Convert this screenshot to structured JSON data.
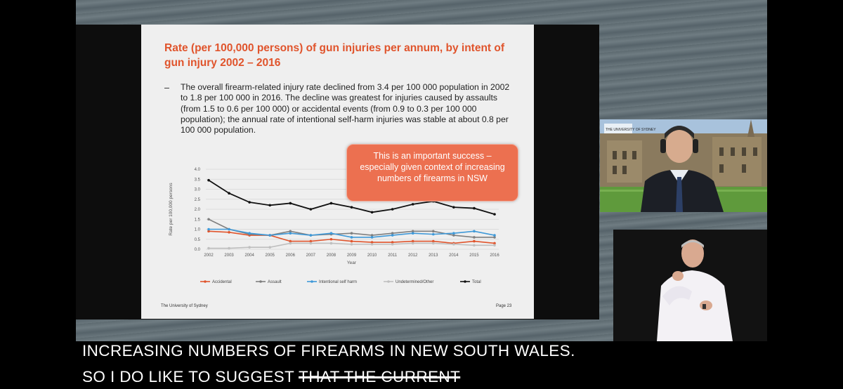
{
  "slide": {
    "title": "Rate (per 100,000 persons) of gun injuries per annum, by intent of gun injury 2002 – 2016",
    "bullet_dash": "–",
    "bullet": "The overall firearm-related injury rate declined from 3.4 per 100 000 population in 2002 to 1.8 per 100 000 in 2016. The decline was greatest for injuries caused by assaults (from 1.5 to 0.6 per 100 000) or accidental events (from 0.9 to 0.3 per 100 000 population); the annual rate of intentional self-harm injuries was stable at about 0.8 per 100 000 population.",
    "callout": "This is an important success – especially given context of increasing numbers of firearms in NSW",
    "footer_left": "The University of Sydney",
    "footer_right": "Page 23"
  },
  "chart_data": {
    "type": "line",
    "xlabel": "Year",
    "ylabel": "Rate per 100,000 persons",
    "ylim": [
      0,
      4
    ],
    "yticks": [
      "0.0",
      "0.5",
      "1.0",
      "1.5",
      "2.0",
      "2.5",
      "3.0",
      "3.5",
      "4.0"
    ],
    "x": [
      "2002",
      "2003",
      "2004",
      "2005",
      "2006",
      "2007",
      "2008",
      "2009",
      "2010",
      "2011",
      "2012",
      "2013",
      "2014",
      "2015",
      "2016"
    ],
    "grid": true,
    "legend_position": "bottom",
    "series": [
      {
        "name": "Accidental",
        "color": "#e0542c",
        "values": [
          0.9,
          0.85,
          0.7,
          0.7,
          0.4,
          0.4,
          0.5,
          0.4,
          0.35,
          0.35,
          0.4,
          0.4,
          0.3,
          0.4,
          0.3
        ]
      },
      {
        "name": "Assault",
        "color": "#7f7f7f",
        "values": [
          1.5,
          1.0,
          0.75,
          0.7,
          0.9,
          0.7,
          0.75,
          0.8,
          0.7,
          0.8,
          0.9,
          0.9,
          0.7,
          0.6,
          0.6
        ]
      },
      {
        "name": "Intentional self harm",
        "color": "#3f99d8",
        "values": [
          1.0,
          1.0,
          0.8,
          0.7,
          0.8,
          0.7,
          0.8,
          0.6,
          0.6,
          0.7,
          0.8,
          0.75,
          0.8,
          0.9,
          0.7
        ]
      },
      {
        "name": "Undetermined/Other",
        "color": "#bfbfbf",
        "values": [
          0.05,
          0.05,
          0.1,
          0.1,
          0.3,
          0.3,
          0.3,
          0.25,
          0.25,
          0.25,
          0.3,
          0.3,
          0.25,
          0.2,
          0.2
        ]
      },
      {
        "name": "Total",
        "color": "#111111",
        "values": [
          3.45,
          2.8,
          2.35,
          2.2,
          2.3,
          2.0,
          2.3,
          2.1,
          1.85,
          2.0,
          2.25,
          2.4,
          2.1,
          2.05,
          1.75
        ]
      }
    ]
  },
  "captions": {
    "line1": "INCREASING NUMBERS OF FIREARMS IN NEW SOUTH WALES.",
    "line2_main": "SO I DO LIKE TO SUGGEST",
    "line2_struck": "THAT THE CURRENT"
  },
  "webcam": {
    "logo": "THE UNIVERSITY OF SYDNEY"
  }
}
